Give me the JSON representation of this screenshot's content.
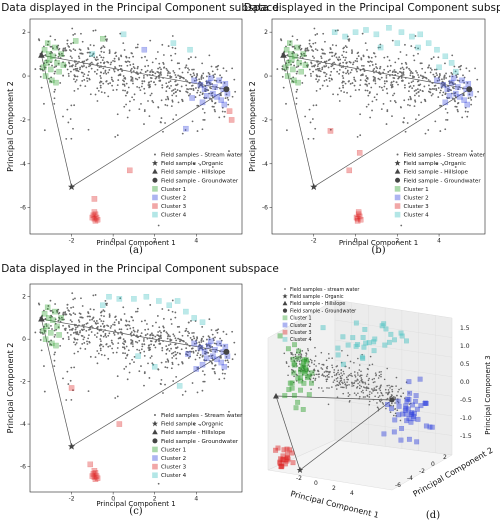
{
  "chart_data": [
    {
      "id": "a",
      "type": "scatter",
      "title": "Data displayed in the Principal Component subspace",
      "xlabel": "Principal Component 1",
      "ylabel": "Principal Component 2",
      "panel_label": "(a)",
      "xlim": [
        -4,
        6.2
      ],
      "ylim": [
        -7.2,
        2.6
      ],
      "xticks": [
        -2,
        0,
        2,
        4
      ],
      "yticks": [
        2,
        0,
        -2,
        -4,
        -6
      ],
      "triangle": [
        [
          -3.45,
          0.95
        ],
        [
          -2.0,
          -5.05
        ],
        [
          5.45,
          -0.6
        ]
      ],
      "end_members": {
        "organic": [
          -2.0,
          -5.05
        ],
        "hillslope": [
          -3.45,
          0.95
        ],
        "groundwater": [
          5.45,
          -0.6
        ]
      },
      "legend": {
        "position": "lower-right",
        "entries": [
          "Field samples - Stream water",
          "Field sample - Organic",
          "Field sample - Hillslope",
          "Field sample - Groundwater",
          "Cluster 1",
          "Cluster 2",
          "Cluster 3",
          "Cluster 4"
        ]
      },
      "clusters": [
        {
          "name": "Cluster 1",
          "color": "#2ca02c",
          "points": [
            [
              -3.3,
              1.2
            ],
            [
              -3.1,
              1.0
            ],
            [
              -3.2,
              0.6
            ],
            [
              -2.9,
              0.9
            ],
            [
              -3.0,
              0.3
            ],
            [
              -2.8,
              1.3
            ],
            [
              -3.25,
              0.0
            ],
            [
              -2.7,
              0.6
            ],
            [
              -3.15,
              1.5
            ],
            [
              -2.6,
              0.2
            ],
            [
              -2.95,
              -0.2
            ],
            [
              -3.35,
              0.4
            ],
            [
              -2.5,
              1.0
            ],
            [
              -2.75,
              -0.3
            ],
            [
              -3.05,
              0.75
            ],
            [
              -1.8,
              1.6
            ],
            [
              -0.5,
              1.7
            ],
            [
              -2.4,
              0.5
            ]
          ]
        },
        {
          "name": "Cluster 2",
          "color": "#3344dd",
          "points": [
            [
              4.6,
              -0.3
            ],
            [
              4.9,
              -0.5
            ],
            [
              5.1,
              -0.2
            ],
            [
              5.3,
              -0.6
            ],
            [
              4.8,
              -0.8
            ],
            [
              5.0,
              -0.95
            ],
            [
              5.4,
              -0.35
            ],
            [
              4.4,
              -0.6
            ],
            [
              5.2,
              -1.1
            ],
            [
              4.7,
              -0.1
            ],
            [
              5.5,
              -0.8
            ],
            [
              4.2,
              -0.4
            ],
            [
              4.5,
              -0.9
            ],
            [
              3.9,
              -0.2
            ],
            [
              4.3,
              -1.2
            ],
            [
              3.8,
              -1.0
            ],
            [
              5.35,
              -1.3
            ],
            [
              1.5,
              1.2
            ],
            [
              3.5,
              -2.4
            ]
          ]
        },
        {
          "name": "Cluster 3",
          "color": "#dd2222",
          "points": [
            [
              -0.85,
              -6.3
            ],
            [
              -0.9,
              -6.5
            ],
            [
              -0.95,
              -6.35
            ],
            [
              -0.8,
              -6.45
            ],
            [
              -0.9,
              -6.2
            ],
            [
              -1.0,
              -6.45
            ],
            [
              -0.75,
              -6.55
            ],
            [
              -0.85,
              -6.6
            ],
            [
              -0.9,
              -5.6
            ],
            [
              5.6,
              -1.6
            ],
            [
              5.7,
              -2.0
            ],
            [
              0.8,
              -4.3
            ]
          ]
        },
        {
          "name": "Cluster 4",
          "color": "#40c0c0",
          "points": [
            [
              -1.0,
              1.0
            ],
            [
              0.5,
              1.9
            ],
            [
              2.9,
              1.5
            ],
            [
              3.7,
              1.2
            ]
          ]
        }
      ],
      "stream_samples_count": 700
    },
    {
      "id": "b",
      "type": "scatter",
      "title": "Data displayed in the Principal Component subspace",
      "xlabel": "Principal Component 1",
      "ylabel": "Principal Component 2",
      "panel_label": "(b)",
      "xlim": [
        -4,
        6.2
      ],
      "ylim": [
        -7.2,
        2.6
      ],
      "xticks": [
        -2,
        0,
        2,
        4
      ],
      "yticks": [
        2,
        0,
        -2,
        -4,
        -6
      ],
      "triangle": [
        [
          -3.45,
          0.95
        ],
        [
          -2.0,
          -5.05
        ],
        [
          5.45,
          -0.6
        ]
      ],
      "end_members": {
        "organic": [
          -2.0,
          -5.05
        ],
        "hillslope": [
          -3.45,
          0.95
        ],
        "groundwater": [
          5.45,
          -0.6
        ]
      },
      "legend": {
        "position": "lower-right",
        "entries": [
          "Field samples - Stream water",
          "Field sample - Organic",
          "Field sample - Hillslope",
          "Field sample - Groundwater",
          "Cluster 1",
          "Cluster 2",
          "Cluster 3",
          "Cluster 4"
        ]
      },
      "clusters": [
        {
          "name": "Cluster 1",
          "color": "#2ca02c",
          "points": [
            [
              -3.3,
              1.2
            ],
            [
              -3.1,
              1.0
            ],
            [
              -3.2,
              0.6
            ],
            [
              -2.9,
              0.9
            ],
            [
              -3.0,
              0.3
            ],
            [
              -2.8,
              1.3
            ],
            [
              -3.25,
              0.0
            ],
            [
              -2.7,
              0.6
            ],
            [
              -3.15,
              1.5
            ],
            [
              -2.6,
              0.2
            ],
            [
              -2.95,
              -0.2
            ],
            [
              -3.35,
              0.4
            ],
            [
              -2.5,
              1.0
            ],
            [
              -2.75,
              -0.3
            ],
            [
              -3.05,
              0.75
            ],
            [
              -2.4,
              0.5
            ]
          ]
        },
        {
          "name": "Cluster 2",
          "color": "#3344dd",
          "points": [
            [
              4.6,
              -0.3
            ],
            [
              4.9,
              -0.5
            ],
            [
              5.1,
              -0.2
            ],
            [
              5.3,
              -0.6
            ],
            [
              4.8,
              -0.8
            ],
            [
              5.0,
              -0.95
            ],
            [
              5.4,
              -0.35
            ],
            [
              4.4,
              -0.6
            ],
            [
              5.2,
              -1.1
            ],
            [
              4.7,
              -0.1
            ],
            [
              5.5,
              -0.8
            ],
            [
              4.2,
              -0.4
            ],
            [
              4.5,
              -0.9
            ],
            [
              3.9,
              -0.2
            ],
            [
              4.3,
              -1.2
            ],
            [
              5.35,
              -1.3
            ]
          ]
        },
        {
          "name": "Cluster 3",
          "color": "#dd2222",
          "points": [
            [
              0.15,
              -6.3
            ],
            [
              0.1,
              -6.5
            ],
            [
              0.2,
              -6.4
            ],
            [
              0.05,
              -6.45
            ],
            [
              0.15,
              -6.2
            ],
            [
              0.25,
              -6.55
            ],
            [
              0.1,
              -6.6
            ],
            [
              -0.3,
              -4.3
            ],
            [
              -1.2,
              -2.5
            ],
            [
              0.2,
              -3.5
            ]
          ]
        },
        {
          "name": "Cluster 4",
          "color": "#40c0c0",
          "points": [
            [
              0.0,
              2.0
            ],
            [
              0.5,
              2.1
            ],
            [
              1.0,
              1.9
            ],
            [
              1.6,
              2.2
            ],
            [
              2.2,
              2.0
            ],
            [
              2.7,
              1.8
            ],
            [
              3.1,
              1.9
            ],
            [
              3.5,
              1.5
            ],
            [
              3.9,
              1.2
            ],
            [
              4.3,
              0.9
            ],
            [
              4.6,
              0.6
            ],
            [
              2.0,
              1.5
            ],
            [
              1.2,
              1.3
            ],
            [
              3.0,
              1.3
            ],
            [
              4.0,
              0.4
            ],
            [
              4.8,
              0.2
            ],
            [
              -1.0,
              2.0
            ],
            [
              -0.5,
              1.8
            ]
          ]
        }
      ],
      "stream_samples_count": 700
    },
    {
      "id": "c",
      "type": "scatter",
      "title": "Data displayed in the Principal Component subspace",
      "xlabel": "Principal Component 1",
      "ylabel": "Principal Component 2",
      "panel_label": "(c)",
      "xlim": [
        -4,
        6.2
      ],
      "ylim": [
        -7.2,
        2.6
      ],
      "xticks": [
        -2,
        0,
        2,
        4
      ],
      "yticks": [
        2,
        0,
        -2,
        -4,
        -6
      ],
      "triangle": [
        [
          -3.45,
          0.95
        ],
        [
          -2.0,
          -5.05
        ],
        [
          5.45,
          -0.6
        ]
      ],
      "end_members": {
        "organic": [
          -2.0,
          -5.05
        ],
        "hillslope": [
          -3.45,
          0.95
        ],
        "groundwater": [
          5.45,
          -0.6
        ]
      },
      "legend": {
        "position": "lower-right",
        "entries": [
          "Field samples - Stream water",
          "Field sample - Organic",
          "Field sample - Hillslope",
          "Field sample - Groundwater",
          "Cluster 1",
          "Cluster 2",
          "Cluster 3",
          "Cluster 4"
        ]
      },
      "clusters": [
        {
          "name": "Cluster 1",
          "color": "#2ca02c",
          "points": [
            [
              -3.3,
              1.2
            ],
            [
              -3.1,
              1.0
            ],
            [
              -3.2,
              0.6
            ],
            [
              -2.9,
              0.9
            ],
            [
              -3.0,
              0.3
            ],
            [
              -2.8,
              1.3
            ],
            [
              -3.25,
              0.0
            ],
            [
              -2.7,
              0.6
            ],
            [
              -3.15,
              1.5
            ],
            [
              -2.6,
              0.2
            ],
            [
              -2.95,
              -0.2
            ],
            [
              -3.35,
              0.4
            ],
            [
              -2.5,
              1.0
            ],
            [
              -2.75,
              -0.3
            ]
          ]
        },
        {
          "name": "Cluster 2",
          "color": "#3344dd",
          "points": [
            [
              4.6,
              -0.3
            ],
            [
              4.9,
              -0.5
            ],
            [
              5.1,
              -0.2
            ],
            [
              5.3,
              -0.6
            ],
            [
              4.8,
              -0.8
            ],
            [
              5.0,
              -0.95
            ],
            [
              5.4,
              -0.35
            ],
            [
              4.4,
              -0.6
            ],
            [
              5.2,
              -1.1
            ],
            [
              4.7,
              -0.1
            ],
            [
              5.5,
              -0.8
            ],
            [
              4.2,
              -0.4
            ],
            [
              4.5,
              -0.9
            ],
            [
              3.9,
              -0.2
            ],
            [
              4.3,
              -1.2
            ],
            [
              5.35,
              -1.3
            ],
            [
              3.6,
              -0.7
            ],
            [
              4.0,
              -1.4
            ]
          ]
        },
        {
          "name": "Cluster 3",
          "color": "#dd2222",
          "points": [
            [
              -0.85,
              -6.3
            ],
            [
              -0.9,
              -6.5
            ],
            [
              -0.95,
              -6.35
            ],
            [
              -0.8,
              -6.45
            ],
            [
              -0.9,
              -6.2
            ],
            [
              -1.0,
              -6.45
            ],
            [
              -0.75,
              -6.55
            ],
            [
              -0.85,
              -6.6
            ],
            [
              -1.1,
              -5.9
            ],
            [
              0.3,
              -4.0
            ],
            [
              -2.0,
              -2.3
            ]
          ]
        },
        {
          "name": "Cluster 4",
          "color": "#40c0c0",
          "points": [
            [
              -0.2,
              2.0
            ],
            [
              0.3,
              1.9
            ],
            [
              1.0,
              1.9
            ],
            [
              1.6,
              2.0
            ],
            [
              2.2,
              1.8
            ],
            [
              2.7,
              1.6
            ],
            [
              3.1,
              1.8
            ],
            [
              3.5,
              1.3
            ],
            [
              3.9,
              1.0
            ],
            [
              4.3,
              0.8
            ],
            [
              1.2,
              -0.8
            ],
            [
              2.0,
              -1.3
            ],
            [
              3.2,
              -2.2
            ],
            [
              -0.5,
              1.6
            ]
          ]
        }
      ],
      "stream_samples_count": 700
    },
    {
      "id": "d",
      "type": "scatter3d",
      "xlabel": "Principal Component 1",
      "ylabel": "Principal Component 2",
      "zlabel": "Principal Component 3",
      "panel_label": "(d)",
      "xticks": [
        -2,
        0,
        2,
        4
      ],
      "yticks": [
        -6,
        -4,
        -2,
        0,
        2
      ],
      "zticks": [
        1.5,
        1.0,
        0.5,
        0.0,
        -0.5,
        -1.0,
        -1.5
      ],
      "legend": {
        "position": "upper-left",
        "entries": [
          "Field samples - stream water",
          "Field sample - Organic",
          "Field sample - Hillslope",
          "Field sample - Groundwater",
          "Cluster 1",
          "Cluster 2",
          "Cluster 3",
          "Cluster 4"
        ]
      }
    }
  ]
}
